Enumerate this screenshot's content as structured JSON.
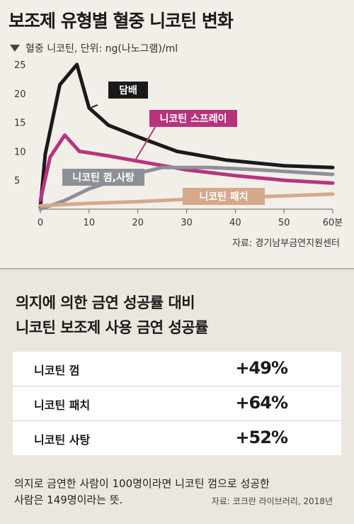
{
  "header": {
    "title": "보조제 유형별 혈중 니코틴 변화",
    "unit": "혈중 니코틴, 단위: ng(나노그램)/ml",
    "source": "자료: 경기남부금연지원센터"
  },
  "chart_data": {
    "type": "line",
    "title": "보조제 유형별 혈중 니코틴 변화",
    "xlabel": "",
    "ylabel": "혈중 니코틴, 단위: ng(나노그램)/ml",
    "xlim": [
      0,
      60
    ],
    "ylim": [
      0,
      25
    ],
    "x_ticks": [
      "0",
      "10",
      "20",
      "30",
      "40",
      "50",
      "60분"
    ],
    "y_ticks": [
      "5",
      "10",
      "15",
      "20",
      "25"
    ],
    "grid": false,
    "series": [
      {
        "name": "담배",
        "color": "#1a1a1a",
        "x": [
          0,
          1,
          4,
          7.5,
          10,
          14,
          20,
          28,
          38,
          50,
          60
        ],
        "y": [
          0.4,
          9.5,
          21.5,
          25,
          17.5,
          14.5,
          12.5,
          10,
          8.5,
          7.5,
          7.2
        ]
      },
      {
        "name": "니코틴 스프레이",
        "color": "#b8337e",
        "x": [
          0,
          2,
          5,
          8,
          14,
          20,
          30,
          40,
          50,
          60
        ],
        "y": [
          1.5,
          9,
          12.8,
          10,
          9.2,
          8.3,
          6.8,
          5.8,
          5.0,
          4.5
        ]
      },
      {
        "name": "니코틴 껌,사탕",
        "color": "#8e9099",
        "x": [
          0,
          5,
          10,
          18,
          25,
          35,
          45,
          60
        ],
        "y": [
          0,
          1.5,
          3.5,
          5.8,
          7.2,
          7.2,
          6.8,
          6.0
        ]
      },
      {
        "name": "니코틴 패치",
        "color": "#d6a88c",
        "x": [
          0,
          10,
          20,
          30,
          40,
          50,
          60
        ],
        "y": [
          0.6,
          1.0,
          1.3,
          1.7,
          2.0,
          2.3,
          2.6
        ]
      }
    ]
  },
  "comparison": {
    "title_line1": "의지에 의한 금연 성공률 대비",
    "title_line2": "니코틴 보조제 사용 금연 성공률",
    "rows": [
      {
        "label": "니코틴 껌",
        "value": "+49%"
      },
      {
        "label": "니코틴 패치",
        "value": "+64%"
      },
      {
        "label": "니코틴 사탕",
        "value": "+52%"
      }
    ],
    "note_line1": "의지로 금연한 사람이 100명이라면 니코틴 껌으로 성공한",
    "note_line2": "사람은 149명이라는 뜻.",
    "source": "자료: 코크란 라이브러리, 2018년"
  }
}
